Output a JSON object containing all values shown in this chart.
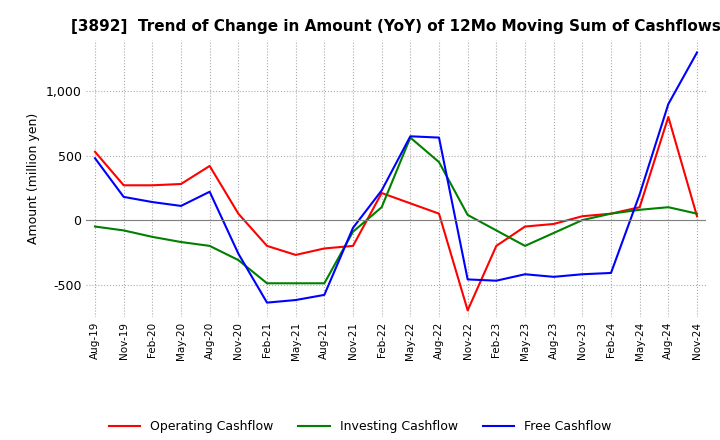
{
  "title": "[3892]  Trend of Change in Amount (YoY) of 12Mo Moving Sum of Cashflows",
  "ylabel": "Amount (million yen)",
  "x_labels": [
    "Aug-19",
    "Nov-19",
    "Feb-20",
    "May-20",
    "Aug-20",
    "Nov-20",
    "Feb-21",
    "May-21",
    "Aug-21",
    "Nov-21",
    "Feb-22",
    "May-22",
    "Aug-22",
    "Nov-22",
    "Feb-23",
    "May-23",
    "Aug-23",
    "Nov-23",
    "Feb-24",
    "May-24",
    "Aug-24",
    "Nov-24"
  ],
  "operating": [
    530,
    270,
    270,
    280,
    420,
    50,
    -200,
    -270,
    -220,
    -200,
    210,
    130,
    50,
    -700,
    -200,
    -50,
    -30,
    30,
    50,
    100,
    800,
    30
  ],
  "investing": [
    -50,
    -80,
    -130,
    -170,
    -200,
    -310,
    -490,
    -490,
    -490,
    -90,
    100,
    640,
    450,
    40,
    -80,
    -200,
    -100,
    0,
    50,
    80,
    100,
    50
  ],
  "free": [
    480,
    180,
    140,
    110,
    220,
    -260,
    -640,
    -620,
    -580,
    -60,
    230,
    650,
    640,
    -460,
    -470,
    -420,
    -440,
    -420,
    -410,
    200,
    900,
    1300
  ],
  "ylim": [
    -750,
    1400
  ],
  "yticks": [
    -500,
    0,
    500,
    1000
  ],
  "operating_color": "#ff0000",
  "investing_color": "#008000",
  "free_color": "#0000ff",
  "background_color": "#ffffff",
  "grid_color": "#aaaaaa",
  "title_fontsize": 11,
  "legend_labels": [
    "Operating Cashflow",
    "Investing Cashflow",
    "Free Cashflow"
  ]
}
